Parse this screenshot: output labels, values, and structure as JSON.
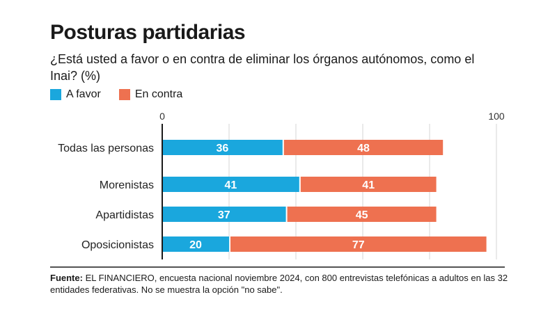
{
  "title": "Posturas partidarias",
  "subtitle": "¿Está usted a favor o en contra de eliminar los órganos autónomos, como el Inai? (%)",
  "legend": [
    {
      "label": "A favor",
      "color": "#1aa7dd"
    },
    {
      "label": "En contra",
      "color": "#ee7150"
    }
  ],
  "footer": {
    "label": "Fuente:",
    "text": " EL FINANCIERO, encuesta nacional noviembre 2024, con 800 entrevistas telefónicas a adultos en las 32 entidades federativas. No se muestra la opción \"no sabe\"."
  },
  "chart_data": {
    "type": "bar",
    "orientation": "horizontal",
    "stacked": true,
    "categories": [
      "Todas las personas",
      "Morenistas",
      "Apartidistas",
      "Oposicionistas"
    ],
    "series": [
      {
        "name": "A favor",
        "values": [
          36,
          41,
          37,
          20
        ],
        "color": "#1aa7dd"
      },
      {
        "name": "En contra",
        "values": [
          48,
          41,
          45,
          77
        ],
        "color": "#ee7150"
      }
    ],
    "xlim": [
      0,
      100
    ],
    "x_ticks": [
      "0",
      "100"
    ],
    "grid": true
  }
}
